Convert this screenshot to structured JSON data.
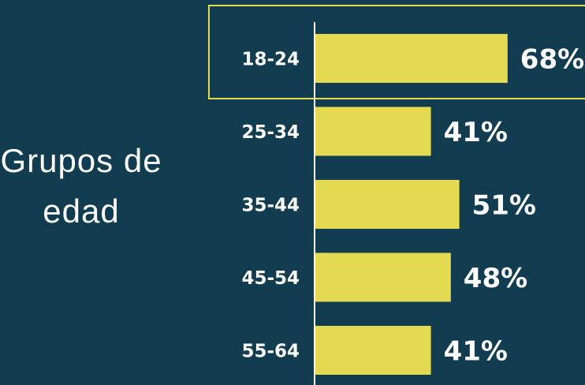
{
  "chart_data": {
    "type": "bar",
    "orientation": "horizontal",
    "title": "Grupos de edad",
    "categories": [
      "18-24",
      "25-34",
      "35-44",
      "45-54",
      "55-64"
    ],
    "values": [
      68,
      41,
      51,
      48,
      41
    ],
    "value_labels": [
      "68%",
      "41%",
      "51%",
      "48%",
      "41%"
    ],
    "color": "#e3da52",
    "background": "#123c4f",
    "xlim": [
      0,
      95
    ]
  }
}
